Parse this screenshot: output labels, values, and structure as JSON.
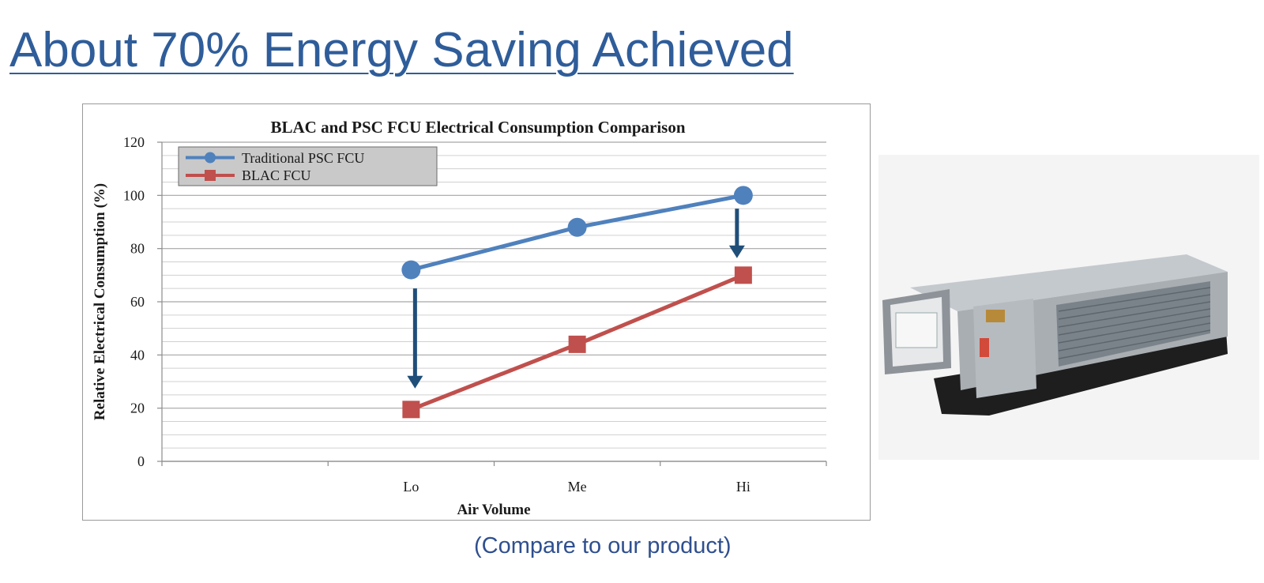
{
  "slide": {
    "title": "About 70% Energy Saving Achieved",
    "caption": "(Compare to our product)"
  },
  "chart_data": {
    "type": "line",
    "title": "BLAC and  PSC FCU Electrical Consumption  Comparison",
    "xlabel": "Air Volume",
    "ylabel": "Relative Electrical Consumption  (%)",
    "categories": [
      "",
      "Lo",
      "Me",
      "Hi"
    ],
    "ylim": [
      0,
      120
    ],
    "yticks": [
      0,
      20,
      40,
      60,
      80,
      100,
      120
    ],
    "minor_grid_step": 5,
    "grid": true,
    "legend_position": "top-left",
    "series": [
      {
        "name": "Traditional PSC FCU",
        "values": [
          null,
          72,
          88,
          100
        ],
        "color": "#4f81bd",
        "marker": "circle"
      },
      {
        "name": "BLAC  FCU",
        "values": [
          null,
          19.5,
          44,
          70
        ],
        "color": "#c0504d",
        "marker": "square"
      }
    ],
    "annotations": [
      {
        "type": "arrow",
        "category": "Lo",
        "from": 65,
        "to": 28,
        "color": "#1f4e79"
      },
      {
        "type": "arrow",
        "category": "Hi",
        "from": 95,
        "to": 77,
        "color": "#1f4e79"
      }
    ]
  },
  "product_image": {
    "subject": "fan coil unit",
    "colors": {
      "casing": "#aab0b6",
      "panel": "#d4d7da",
      "tray": "#1e1e1e",
      "coil": "#7c858c"
    }
  }
}
